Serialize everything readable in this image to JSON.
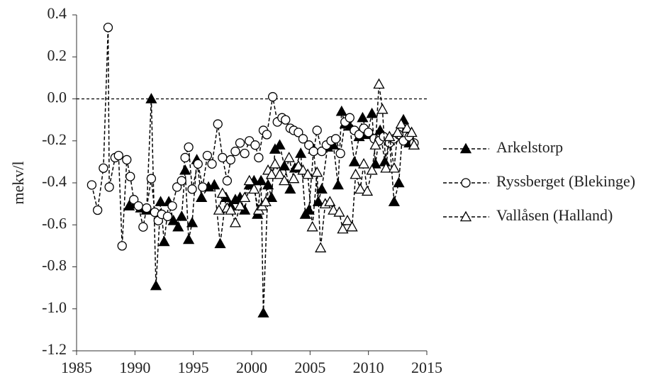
{
  "chart_data": {
    "type": "line",
    "y_label": "mekv/l",
    "xlim": [
      1985,
      2015
    ],
    "xticks": [
      1985,
      1990,
      1995,
      2000,
      2005,
      2010,
      2015
    ],
    "ylim": [
      -1.2,
      0.4
    ],
    "yticks": [
      {
        "value": -1.2,
        "label": "-1.2"
      },
      {
        "value": -1,
        "label": "-1.0"
      },
      -0.8,
      -0.6,
      -0.4,
      -0.2,
      {
        "value": 0,
        "label": "0.0"
      },
      0.2,
      0.4
    ],
    "reference_line": 0,
    "series": [
      {
        "name": "Arkelstorp",
        "color": "#000000",
        "marker": "triangle-filled",
        "x": [
          1989.5,
          1990,
          1990.5,
          1991,
          1991.4,
          1991.8,
          1992.2,
          1992.5,
          1992.9,
          1993.3,
          1993.7,
          1994,
          1994.3,
          1994.6,
          1994.9,
          1995.3,
          1995.7,
          1996.3,
          1996.8,
          1997.3,
          1997.8,
          1998.2,
          1998.6,
          1999,
          1999.4,
          1999.8,
          2000.2,
          2000.5,
          2000.8,
          2001,
          2001.4,
          2001.7,
          2002,
          2002.4,
          2002.8,
          2003.3,
          2003.7,
          2004.2,
          2004.6,
          2004.9,
          2005.3,
          2005.7,
          2006,
          2006.5,
          2007,
          2007.4,
          2007.7,
          2008,
          2008.4,
          2008.8,
          2009.2,
          2009.5,
          2009.9,
          2010.3,
          2010.6,
          2011,
          2011.4,
          2011.8,
          2012.2,
          2012.6,
          2013,
          2013.5,
          2013.9
        ],
        "values": [
          -0.51,
          -0.5,
          -0.52,
          -0.53,
          0.0,
          -0.89,
          -0.49,
          -0.68,
          -0.49,
          -0.58,
          -0.61,
          -0.56,
          -0.34,
          -0.67,
          -0.59,
          -0.29,
          -0.47,
          -0.42,
          -0.41,
          -0.69,
          -0.47,
          -0.51,
          -0.48,
          -0.47,
          -0.53,
          -0.41,
          -0.39,
          -0.55,
          -0.39,
          -1.02,
          -0.41,
          -0.47,
          -0.24,
          -0.22,
          -0.32,
          -0.43,
          -0.33,
          -0.26,
          -0.55,
          -0.53,
          -0.24,
          -0.49,
          -0.43,
          -0.23,
          -0.22,
          -0.41,
          -0.06,
          -0.12,
          -0.13,
          -0.3,
          -0.18,
          -0.09,
          -0.17,
          -0.07,
          -0.31,
          -0.15,
          -0.3,
          -0.2,
          -0.49,
          -0.4,
          -0.1,
          -0.21,
          -0.22
        ]
      },
      {
        "name": "Ryssberget (Blekinge)",
        "color": "#000000",
        "marker": "circle-open",
        "x": [
          1986.3,
          1986.8,
          1987.3,
          1987.7,
          1987.8,
          1988.3,
          1988.6,
          1988.9,
          1989.3,
          1989.6,
          1989.9,
          1990.3,
          1990.7,
          1991,
          1991.4,
          1991.7,
          1992,
          1992.3,
          1992.8,
          1993.2,
          1993.6,
          1994,
          1994.3,
          1994.6,
          1994.9,
          1995.4,
          1995.8,
          1996.2,
          1996.6,
          1997.1,
          1997.5,
          1997.9,
          1998.2,
          1998.6,
          1999,
          1999.4,
          1999.8,
          2000.3,
          2000.6,
          2001,
          2001.3,
          2001.8,
          2002.2,
          2002.6,
          2002.9,
          2003.3,
          2003.6,
          2004,
          2004.4,
          2004.9,
          2005.3,
          2005.6,
          2006,
          2006.4,
          2006.8,
          2007.2,
          2007.6,
          2008,
          2008.4,
          2008.8,
          2009.2,
          2009.6,
          2010,
          2010.5,
          2010.9,
          2011.3,
          2011.8,
          2012.2,
          2012.6,
          2013,
          2013.5,
          2013.9
        ],
        "values": [
          -0.41,
          -0.53,
          -0.33,
          0.34,
          -0.42,
          -0.28,
          -0.27,
          -0.7,
          -0.29,
          -0.37,
          -0.48,
          -0.51,
          -0.61,
          -0.52,
          -0.38,
          -0.54,
          -0.58,
          -0.55,
          -0.56,
          -0.51,
          -0.42,
          -0.39,
          -0.28,
          -0.23,
          -0.43,
          -0.31,
          -0.42,
          -0.27,
          -0.31,
          -0.12,
          -0.28,
          -0.39,
          -0.29,
          -0.25,
          -0.21,
          -0.26,
          -0.2,
          -0.22,
          -0.28,
          -0.15,
          -0.17,
          0.01,
          -0.11,
          -0.09,
          -0.1,
          -0.14,
          -0.15,
          -0.16,
          -0.19,
          -0.22,
          -0.25,
          -0.15,
          -0.25,
          -0.22,
          -0.2,
          -0.19,
          -0.26,
          -0.11,
          -0.09,
          -0.15,
          -0.17,
          -0.14,
          -0.16,
          -0.19,
          -0.2,
          -0.18,
          -0.21,
          -0.19,
          -0.17,
          -0.2,
          -0.18,
          -0.21
        ]
      },
      {
        "name": "Vallåsen (Halland)",
        "color": "#000000",
        "marker": "triangle-open",
        "x": [
          1997.2,
          1997.5,
          1997.9,
          1998.2,
          1998.6,
          1999,
          1999.4,
          1999.8,
          2000.2,
          2000.6,
          2000.9,
          2001.2,
          2001.4,
          2001.7,
          2002,
          2002.4,
          2002.8,
          2003.2,
          2003.6,
          2004,
          2004.4,
          2004.8,
          2005.2,
          2005.6,
          2005.9,
          2006.3,
          2006.7,
          2007,
          2007.5,
          2007.8,
          2008.2,
          2008.6,
          2008.9,
          2009.3,
          2009.6,
          2009.9,
          2010.3,
          2010.6,
          2010.9,
          2011.2,
          2011.5,
          2011.8,
          2012.2,
          2012.5,
          2012.8,
          2013.3,
          2013.7,
          2013.9
        ],
        "values": [
          -0.53,
          -0.45,
          -0.52,
          -0.53,
          -0.59,
          -0.51,
          -0.47,
          -0.39,
          -0.43,
          -0.53,
          -0.51,
          -0.49,
          -0.34,
          -0.36,
          -0.31,
          -0.36,
          -0.39,
          -0.28,
          -0.38,
          -0.32,
          -0.34,
          -0.36,
          -0.61,
          -0.35,
          -0.71,
          -0.5,
          -0.49,
          -0.53,
          -0.54,
          -0.62,
          -0.58,
          -0.61,
          -0.36,
          -0.43,
          -0.31,
          -0.44,
          -0.34,
          -0.22,
          0.07,
          -0.05,
          -0.33,
          -0.18,
          -0.33,
          -0.16,
          -0.12,
          -0.14,
          -0.16,
          -0.22
        ]
      }
    ]
  }
}
